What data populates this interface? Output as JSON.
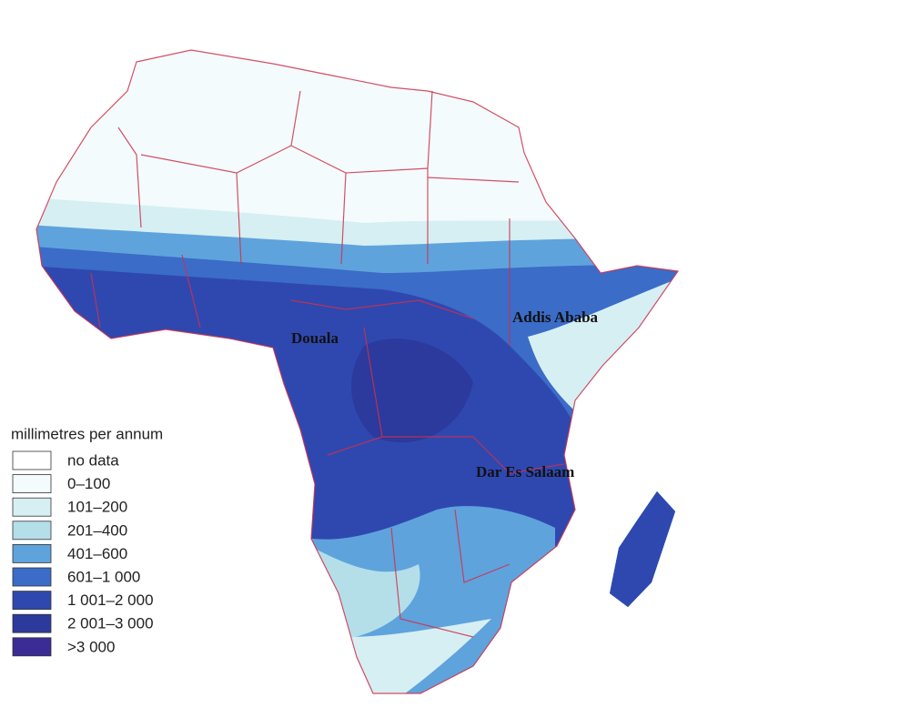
{
  "legend": {
    "title": "millimetres per annum",
    "items": [
      {
        "label": "no data",
        "color": "#ffffff"
      },
      {
        "label": "0–100",
        "color": "#f3fbfc"
      },
      {
        "label": "101–200",
        "color": "#d6eff3"
      },
      {
        "label": "201–400",
        "color": "#b4dfe9"
      },
      {
        "label": "401–600",
        "color": "#5fa3dc"
      },
      {
        "label": "601–1 000",
        "color": "#3b6cc8"
      },
      {
        "label": "1 001–2 000",
        "color": "#2f48b0"
      },
      {
        "label": "2 001–3 000",
        "color": "#2b3a9c"
      },
      {
        "label": ">3 000",
        "color": "#3a2c94"
      }
    ]
  },
  "cities": [
    {
      "label": "Douala"
    },
    {
      "label": "Addis Ababa"
    },
    {
      "label": "Dar Es Salaam"
    }
  ]
}
